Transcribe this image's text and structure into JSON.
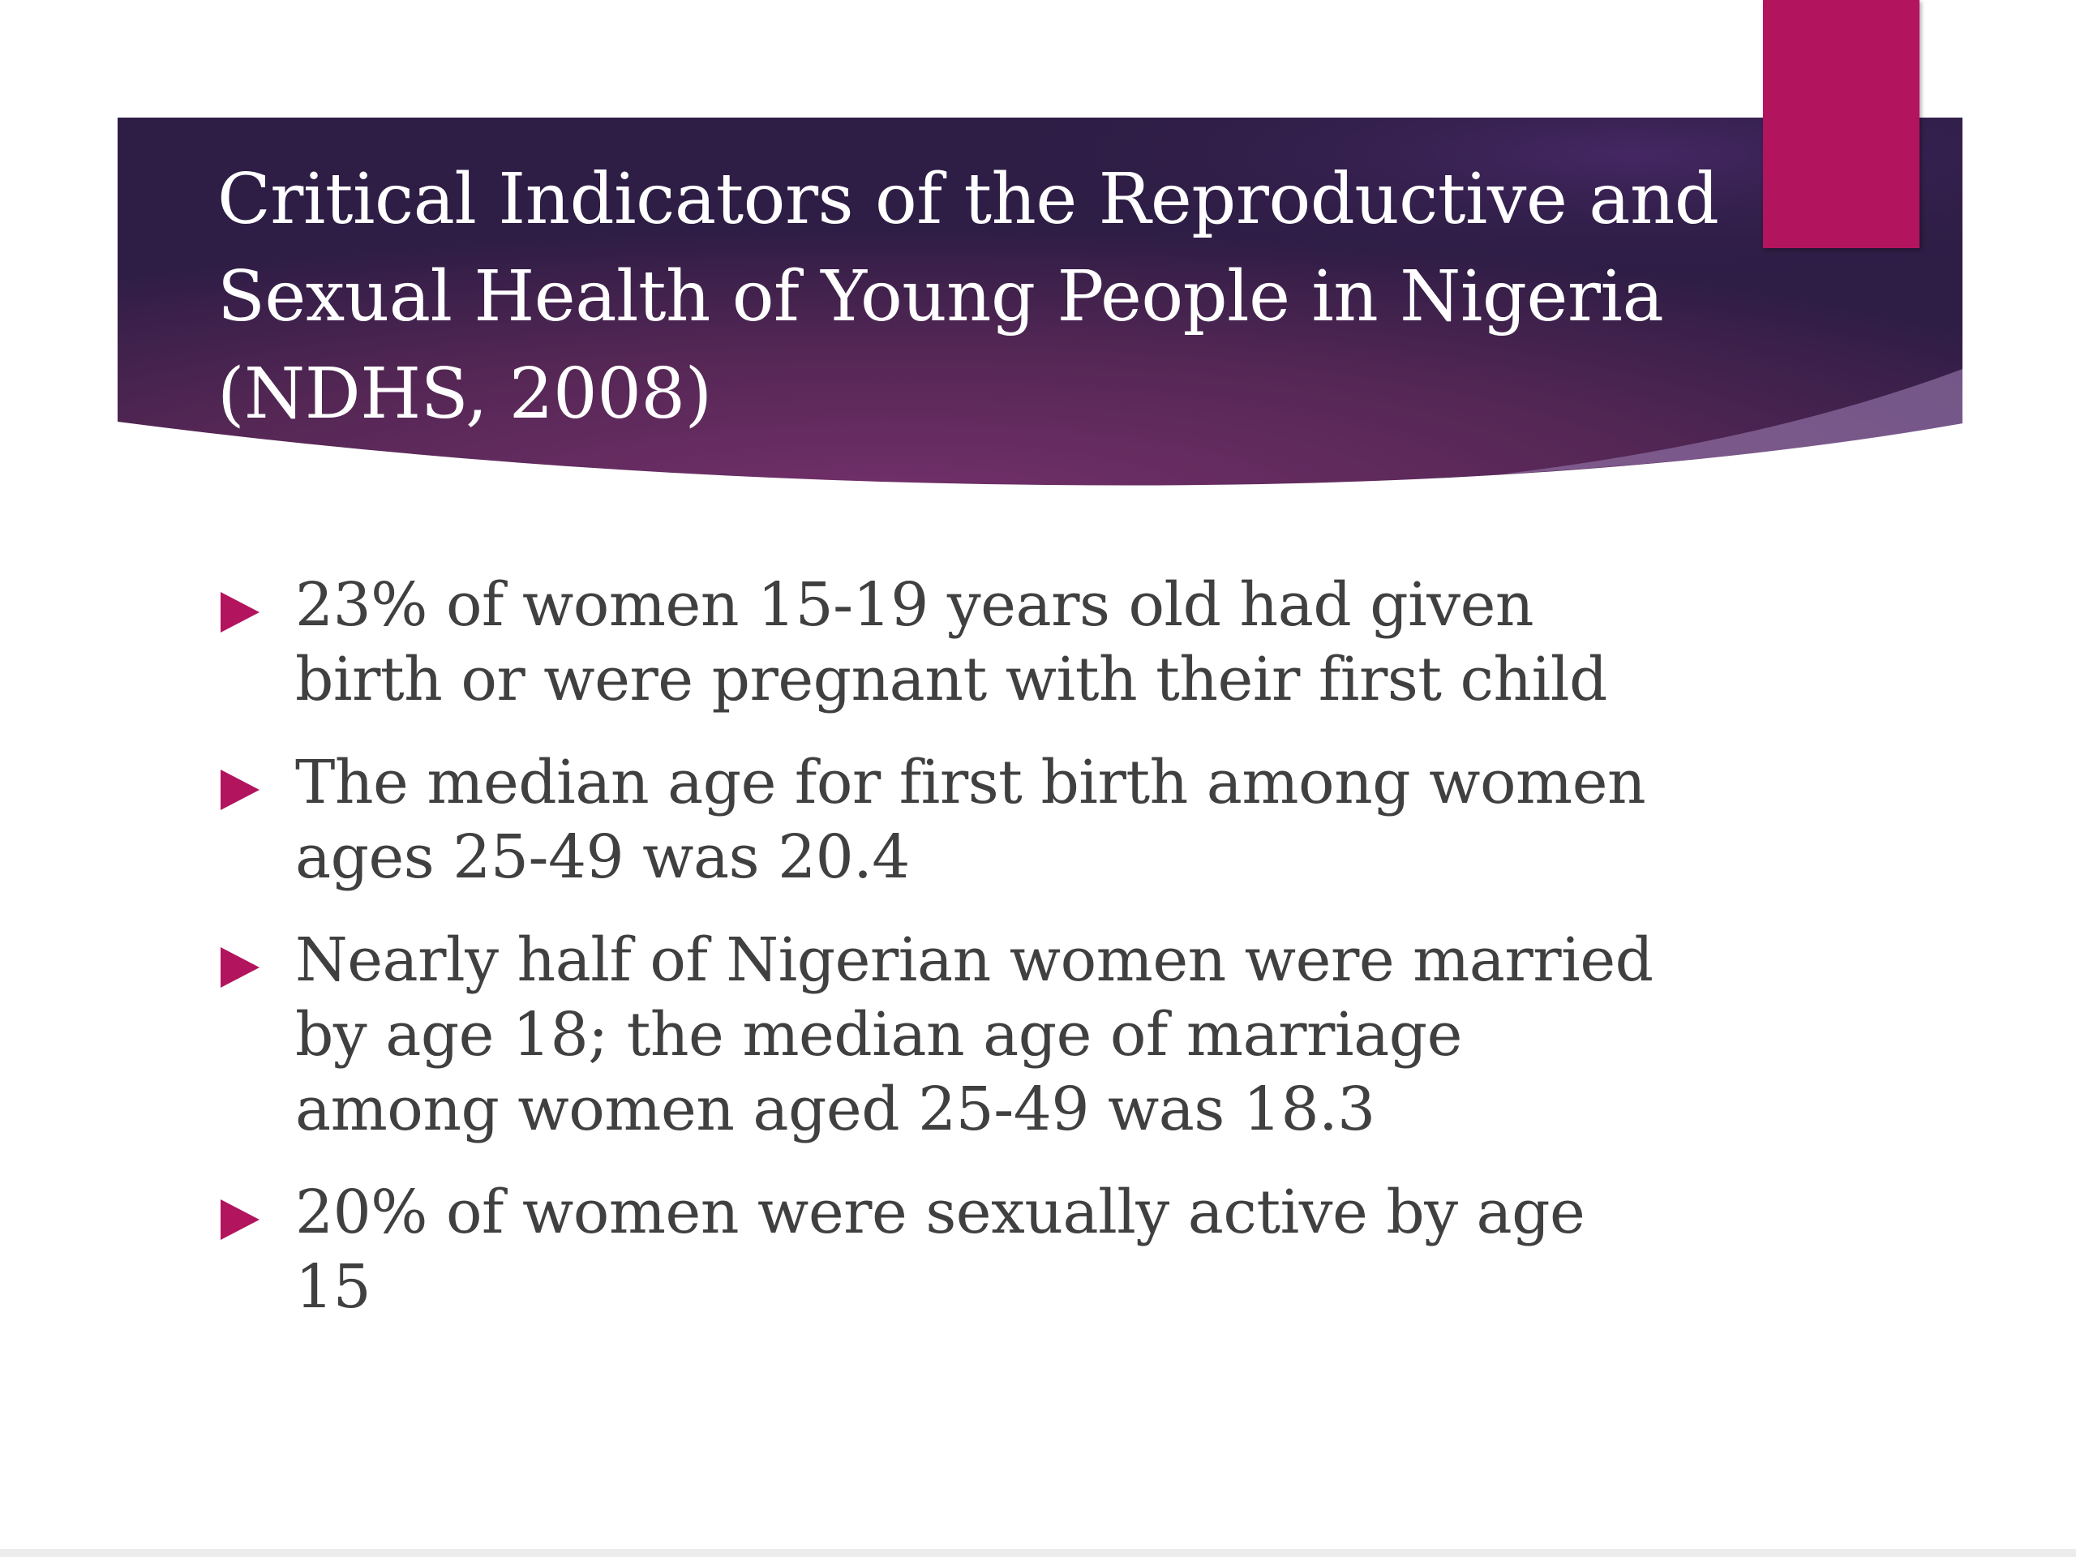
{
  "slide": {
    "title": "Critical Indicators of the Reproductive and Sexual Health of Young People in Nigeria (NDHS, 2008)",
    "bullets": [
      "23% of women 15-19 years old had given birth or were pregnant with their first child",
      "The median age for first birth among women ages 25-49 was 20.4",
      "Nearly half of Nigerian women were married by age 18; the median age of marriage among women aged 25-49 was 18.3",
      "20% of women were sexually active by age 15"
    ],
    "bullet_icon": "triangle-bullet-icon"
  },
  "colors": {
    "header_dark": "#2f1d45",
    "header_mid": "#6a2a60",
    "accent": "#b3145e",
    "title_text": "#ffffff",
    "body_text": "#404040"
  }
}
